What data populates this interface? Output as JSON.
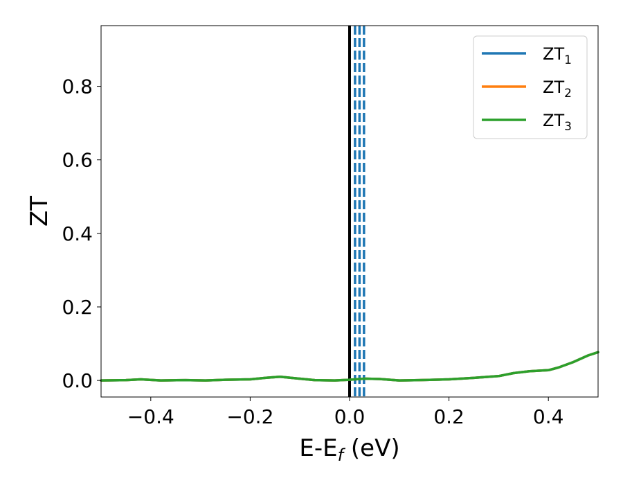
{
  "chart_data": {
    "type": "line",
    "xlabel": "E-E",
    "xlabel_sub": "f",
    "xlabel_unit": " (eV)",
    "ylabel": "ZT",
    "xlim": [
      -0.5,
      0.5
    ],
    "ylim": [
      -0.045,
      0.965
    ],
    "x_ticks": [
      -0.4,
      -0.2,
      0.0,
      0.2,
      0.4
    ],
    "x_tick_labels": [
      "−0.4",
      "−0.2",
      "0.0",
      "0.2",
      "0.4"
    ],
    "y_ticks": [
      0.0,
      0.2,
      0.4,
      0.6,
      0.8
    ],
    "y_tick_labels": [
      "0.0",
      "0.2",
      "0.4",
      "0.6",
      "0.8"
    ],
    "grid": false,
    "legend_position": "top-right",
    "series": [
      {
        "name": "ZT",
        "sub": "1",
        "color": "#1f77b4",
        "x": [
          -0.5,
          -0.45,
          -0.42,
          -0.38,
          -0.33,
          -0.29,
          -0.25,
          -0.2,
          -0.17,
          -0.14,
          -0.11,
          -0.07,
          -0.03,
          0.0,
          0.03,
          0.06,
          0.1,
          0.14,
          0.2,
          0.25,
          0.3,
          0.33,
          0.36,
          0.4,
          0.42,
          0.45,
          0.48,
          0.5
        ],
        "y": [
          0.0,
          0.001,
          0.003,
          0.0,
          0.001,
          0.0,
          0.002,
          0.003,
          0.007,
          0.01,
          0.006,
          0.001,
          0.0,
          0.002,
          0.005,
          0.004,
          0.0,
          0.001,
          0.003,
          0.007,
          0.012,
          0.02,
          0.025,
          0.028,
          0.035,
          0.05,
          0.068,
          0.077
        ]
      },
      {
        "name": "ZT",
        "sub": "2",
        "color": "#ff7f0e",
        "x": [
          -0.5,
          -0.45,
          -0.42,
          -0.38,
          -0.33,
          -0.29,
          -0.25,
          -0.2,
          -0.17,
          -0.14,
          -0.11,
          -0.07,
          -0.03,
          0.0,
          0.03,
          0.06,
          0.1,
          0.14,
          0.2,
          0.25,
          0.3,
          0.33,
          0.36,
          0.4,
          0.42,
          0.45,
          0.48,
          0.5
        ],
        "y": [
          0.0,
          0.001,
          0.003,
          0.0,
          0.001,
          0.0,
          0.002,
          0.003,
          0.007,
          0.01,
          0.006,
          0.001,
          0.0,
          0.002,
          0.005,
          0.004,
          0.0,
          0.001,
          0.003,
          0.007,
          0.012,
          0.02,
          0.025,
          0.028,
          0.035,
          0.05,
          0.068,
          0.077
        ]
      },
      {
        "name": "ZT",
        "sub": "3",
        "color": "#2ca02c",
        "x": [
          -0.5,
          -0.45,
          -0.42,
          -0.38,
          -0.33,
          -0.29,
          -0.25,
          -0.2,
          -0.17,
          -0.14,
          -0.11,
          -0.07,
          -0.03,
          0.0,
          0.03,
          0.06,
          0.1,
          0.14,
          0.2,
          0.25,
          0.3,
          0.33,
          0.36,
          0.4,
          0.42,
          0.45,
          0.48,
          0.5
        ],
        "y": [
          0.0,
          0.001,
          0.003,
          0.0,
          0.001,
          0.0,
          0.002,
          0.003,
          0.007,
          0.01,
          0.006,
          0.001,
          0.0,
          0.002,
          0.005,
          0.004,
          0.0,
          0.001,
          0.003,
          0.007,
          0.012,
          0.02,
          0.025,
          0.028,
          0.035,
          0.05,
          0.068,
          0.077
        ]
      }
    ],
    "vlines": [
      {
        "x": 0.0,
        "color": "#000000",
        "style": "solid"
      },
      {
        "x": 0.011,
        "color": "#1f77b4",
        "style": "dashed"
      },
      {
        "x": 0.02,
        "color": "#1f77b4",
        "style": "dashed"
      },
      {
        "x": 0.029,
        "color": "#1f77b4",
        "style": "dashed"
      }
    ]
  }
}
